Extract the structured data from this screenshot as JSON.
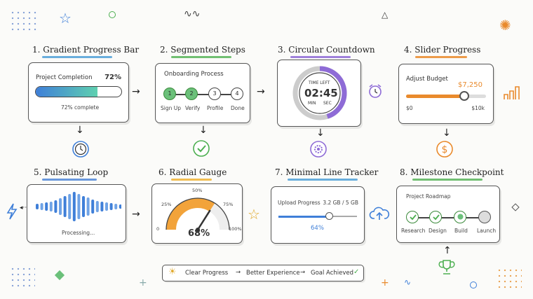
{
  "panels": [
    {
      "title": "1. Gradient Progress Bar",
      "underline": "#4fa0d8"
    },
    {
      "title": "2. Segmented Steps",
      "underline": "#58b45a"
    },
    {
      "title": "3. Circular Countdown",
      "underline": "#8e6bd6"
    },
    {
      "title": "4. Slider Progress",
      "underline": "#e98a2c"
    },
    {
      "title": "5. Pulsating Loop",
      "underline": "#4f86d8"
    },
    {
      "title": "6. Radial Gauge",
      "underline": "#f0b233"
    },
    {
      "title": "7. Minimal Line Tracker",
      "underline": "#4fa0d8"
    },
    {
      "title": "8. Milestone Checkpoint",
      "underline": "#58b45a"
    }
  ],
  "gradient_bar": {
    "label": "Project Completion",
    "percent_text": "72%",
    "caption": "72% complete",
    "progress": 0.72
  },
  "segmented": {
    "label": "Onboarding Process",
    "steps": [
      {
        "num": "1",
        "name": "Sign Up",
        "done": true
      },
      {
        "num": "2",
        "name": "Verify",
        "done": true
      },
      {
        "num": "3",
        "name": "Profile",
        "done": false
      },
      {
        "num": "4",
        "name": "Done",
        "done": false
      }
    ]
  },
  "countdown": {
    "top_label": "TIME LEFT",
    "time": "02:45",
    "min_label": "MIN",
    "sec_label": "SEC",
    "progress": 0.45
  },
  "slider": {
    "label": "Adjust Budget",
    "value": "$7,250",
    "min": "$0",
    "max": "$10k",
    "progress": 0.725
  },
  "pulse": {
    "caption": "Processing..."
  },
  "gauge": {
    "value": "68%",
    "ticks": [
      "0",
      "25%",
      "50%",
      "75%",
      "100%"
    ],
    "progress": 0.68
  },
  "line_tracker": {
    "label": "Upload Progress",
    "amount": "3.2 GB / 5 GB",
    "percent": "64%",
    "progress": 0.64
  },
  "milestone": {
    "label": "Project Roadmap",
    "items": [
      {
        "name": "Research",
        "done": true
      },
      {
        "name": "Design",
        "done": true
      },
      {
        "name": "Build",
        "done": true
      },
      {
        "name": "Launch",
        "done": false
      }
    ]
  },
  "footer": {
    "parts": [
      "Clear Progress",
      "Better Experience",
      "Goal Achieved"
    ]
  },
  "colors": {
    "green": "#4caf50",
    "blue": "#3f7fd8",
    "purple": "#8e6bd6",
    "orange": "#e98a2c",
    "teal": "#5fd0b0"
  }
}
